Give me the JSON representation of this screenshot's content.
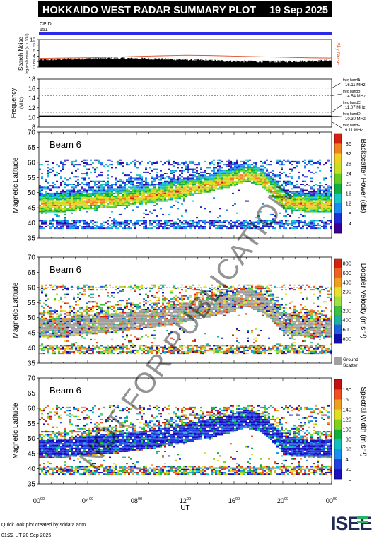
{
  "header": {
    "title": "HOKKAIDO WEST RADAR SUMMARY PLOT",
    "date": "19 Sep 2025",
    "cpid_label": "CPID:",
    "cpid_value": "151"
  },
  "colors": {
    "title_bg": "#000000",
    "cpid_bar": "#2a2ae8",
    "noise_trace": "#e0502a",
    "ground_scatter": "#a0a0a0"
  },
  "watermark": "NOT FOR PUBLICATION",
  "footer": {
    "credit": "Quick look plot created by sddata.adm",
    "timestamp": "01:22 UT 20 Sep 2025"
  },
  "logo": {
    "text": "ISEE"
  },
  "chart_data": [
    {
      "type": "line",
      "panel": "search-noise",
      "ylabel": "Search Noise",
      "ysublabel": "log-scale noise (a.u. 10¹⁰)",
      "right_label": "Sky Noise",
      "ylim": [
        0,
        10
      ],
      "yticks": [
        "0",
        "2",
        "4",
        "6",
        "8",
        "10"
      ],
      "x": [
        0,
        2,
        4,
        6,
        8,
        10,
        12,
        14,
        16,
        18,
        20,
        22,
        24
      ],
      "series": [
        {
          "name": "Sky Noise",
          "values": [
            3.2,
            3.3,
            3.4,
            3.6,
            3.9,
            4.1,
            4.3,
            4.2,
            4.0,
            3.8,
            3.6,
            3.4,
            3.3
          ]
        }
      ]
    },
    {
      "type": "line",
      "panel": "frequency",
      "ylabel": "Frequency",
      "yunit": "(MHz)",
      "ylim": [
        8,
        18
      ],
      "yticks": [
        "8",
        "10",
        "12",
        "14",
        "16",
        "18"
      ],
      "bands": [
        {
          "name": "freq bandA",
          "value": "16.11 MHz",
          "mhz": 16.11
        },
        {
          "name": "freq bandB",
          "value": "14.54 MHz",
          "mhz": 14.54
        },
        {
          "name": "freq bandC",
          "value": "11.07 MHz",
          "mhz": 11.07
        },
        {
          "name": "freq bandD",
          "value": "10.30 MHz",
          "mhz": 10.3
        },
        {
          "name": "freq bandE",
          "value": "9.11 MHz",
          "mhz": 9.11
        }
      ],
      "series": [
        {
          "name": "Tx frequency",
          "values": [
            10.3
          ]
        }
      ]
    },
    {
      "type": "heatmap",
      "panel": "backscatter-power",
      "beam_label": "Beam  6",
      "ylabel": "Magnetic Latitude",
      "ylim": [
        35,
        70
      ],
      "yticks": [
        "35",
        "40",
        "45",
        "50",
        "55",
        "60",
        "65",
        "70"
      ],
      "colorbar": {
        "label": "Backscatter Power (dB)",
        "ticks": [
          "0",
          "4",
          "8",
          "12",
          "16",
          "20",
          "24",
          "28",
          "32",
          "36"
        ],
        "range": [
          0,
          36
        ]
      },
      "echo_band": {
        "x_hours": [
          0,
          2,
          4,
          6,
          8,
          10,
          12,
          14,
          16,
          17,
          18,
          19,
          20,
          21,
          22,
          24
        ],
        "lat_center": [
          46.5,
          46.5,
          47.5,
          48,
          49,
          50,
          51.5,
          53,
          55,
          56.5,
          55,
          52,
          47.5,
          47,
          46.5,
          46.5
        ],
        "peak_value": 24
      }
    },
    {
      "type": "heatmap",
      "panel": "doppler-velocity",
      "beam_label": "Beam  6",
      "ylabel": "Magnetic Latitude",
      "ylim": [
        35,
        70
      ],
      "yticks": [
        "35",
        "40",
        "45",
        "50",
        "55",
        "60",
        "65",
        "70"
      ],
      "colorbar": {
        "label": "Doppler Velocity (m s⁻¹)",
        "ticks": [
          "800",
          "600",
          "400",
          "200",
          "0",
          "-200",
          "-400",
          "-600",
          "-800"
        ],
        "range": [
          -800,
          800
        ],
        "extra_label": "Ground Scatter"
      }
    },
    {
      "type": "heatmap",
      "panel": "spectral-width",
      "beam_label": "Beam  6",
      "ylabel": "Magnetic Latitude",
      "ylim": [
        35,
        70
      ],
      "yticks": [
        "35",
        "40",
        "45",
        "50",
        "55",
        "60",
        "65",
        "70"
      ],
      "colorbar": {
        "label": "Spectral Width (m s⁻¹)",
        "ticks": [
          "0",
          "20",
          "40",
          "60",
          "80",
          "100",
          "120",
          "140",
          "160",
          "180"
        ],
        "range": [
          0,
          180
        ]
      }
    }
  ],
  "time_axis": {
    "xlabel": "UT",
    "xlim": [
      0,
      24
    ],
    "ticks": [
      {
        "hour": "00",
        "min": "00"
      },
      {
        "hour": "04",
        "min": "00"
      },
      {
        "hour": "08",
        "min": "00"
      },
      {
        "hour": "12",
        "min": "00"
      },
      {
        "hour": "16",
        "min": "00"
      },
      {
        "hour": "20",
        "min": "00"
      },
      {
        "hour": "00",
        "min": "00"
      }
    ]
  }
}
